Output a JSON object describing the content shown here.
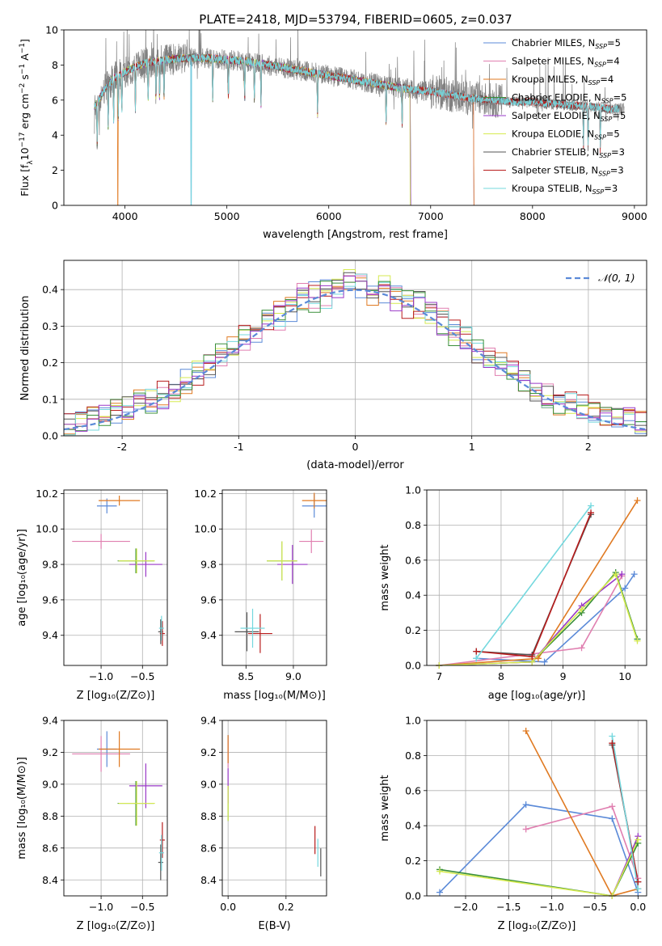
{
  "figure": {
    "title": "PLATE=2418, MJD=53794, FIBERID=0605, z=0.037"
  },
  "colors": {
    "Chabrier MILES": "#5b8ad8",
    "Salpeter MILES": "#e07fb0",
    "Kroupa MILES": "#e07a22",
    "Chabrier ELODIE": "#3a8f3a",
    "Salpeter ELODIE": "#9a38c8",
    "Kroupa ELODIE": "#d6ea50",
    "Chabrier STELIB": "#555555",
    "Salpeter STELIB": "#b81c1c",
    "Kroupa STELIB": "#74d8de",
    "normal_curve": "#5b8ad8",
    "data_spectrum": "#808080"
  },
  "chart_data": [
    {
      "id": "spectrum",
      "type": "line",
      "title": "PLATE=2418, MJD=53794, FIBERID=0605, z=0.037",
      "xlabel": "wavelength [Angstrom, rest frame]",
      "ylabel": "Flux [f_λ10^−17 erg cm^−2 s^−1 A^−1]",
      "xlim": [
        3400,
        9120
      ],
      "ylim": [
        0,
        10
      ],
      "xticks": [
        4000,
        5000,
        6000,
        7000,
        8000,
        9000
      ],
      "yticks": [
        0,
        2,
        4,
        6,
        8,
        10
      ],
      "legend_position": "upper-right",
      "legend": [
        {
          "label": "Chabrier MILES, N",
          "sub": "SSP",
          "tail": "=5"
        },
        {
          "label": "Salpeter MILES, N",
          "sub": "SSP",
          "tail": "=4"
        },
        {
          "label": "Kroupa MILES, N",
          "sub": "SSP",
          "tail": "=4"
        },
        {
          "label": "Chabrier ELODIE, N",
          "sub": "SSP",
          "tail": "=5"
        },
        {
          "label": "Salpeter ELODIE, N",
          "sub": "SSP",
          "tail": "=5"
        },
        {
          "label": "Kroupa ELODIE, N",
          "sub": "SSP",
          "tail": "=5"
        },
        {
          "label": "Chabrier STELIB, N",
          "sub": "SSP",
          "tail": "=3"
        },
        {
          "label": "Salpeter STELIB, N",
          "sub": "SSP",
          "tail": "=3"
        },
        {
          "label": "Kroupa STELIB, N",
          "sub": "SSP",
          "tail": "=3"
        }
      ],
      "continuum": {
        "x": [
          3700,
          3800,
          3900,
          4000,
          4100,
          4200,
          4400,
          4600,
          4800,
          5000,
          5200,
          5400,
          5600,
          5800,
          6000,
          6200,
          6400,
          6600,
          6800,
          7000,
          7200,
          7400,
          7600,
          7800,
          8000,
          8200,
          8400,
          8600,
          8800
        ],
        "y": [
          5.6,
          6.6,
          7.3,
          7.6,
          7.9,
          8.1,
          8.3,
          8.4,
          8.4,
          8.3,
          8.2,
          8.0,
          7.8,
          7.6,
          7.4,
          7.2,
          7.0,
          6.8,
          6.6,
          6.5,
          6.3,
          6.1,
          6.0,
          5.9,
          5.9,
          5.8,
          5.7,
          5.6,
          5.5
        ]
      }
    },
    {
      "id": "residuals",
      "type": "line",
      "xlabel": "(data-model)/error",
      "ylabel": "Normed distribution",
      "xlim": [
        -2.5,
        2.5
      ],
      "ylim": [
        0,
        0.48
      ],
      "xticks": [
        -2,
        -1,
        0,
        1,
        2
      ],
      "yticks": [
        0.0,
        0.1,
        0.2,
        0.3,
        0.4
      ],
      "legend_position": "upper-right",
      "legend_label": "𝒩(0, 1)",
      "normal": {
        "mean": 0,
        "sigma": 1
      }
    },
    {
      "id": "age_vs_Z",
      "type": "scatter",
      "xlabel": "Z [log₁₀(Z/Z⊙)]",
      "ylabel": "age  [log₁₀(age/yr)]",
      "xlim": [
        -1.45,
        -0.2
      ],
      "ylim": [
        9.23,
        10.22
      ],
      "xticks": [
        -1.0,
        -0.5
      ],
      "yticks": [
        9.4,
        9.6,
        9.8,
        10.0,
        10.2
      ]
    },
    {
      "id": "age_vs_mass",
      "type": "scatter",
      "xlabel": "mass [log₁₀(M/M⊙)]",
      "xlim": [
        8.25,
        9.35
      ],
      "ylim": [
        9.23,
        10.22
      ],
      "xticks": [
        8.5,
        9.0
      ],
      "yticks": [
        9.4,
        9.6,
        9.8,
        10.0,
        10.2
      ]
    },
    {
      "id": "weight_vs_age",
      "type": "line",
      "xlabel": "age  [log₁₀(age/yr)]",
      "ylabel": "mass weight",
      "xlim": [
        6.8,
        10.35
      ],
      "ylim": [
        0,
        1
      ],
      "xticks": [
        7,
        8,
        9,
        10
      ],
      "yticks": [
        0.0,
        0.2,
        0.4,
        0.6,
        0.8,
        1.0
      ]
    },
    {
      "id": "mass_vs_Z",
      "type": "scatter",
      "xlabel": "Z [log₁₀(Z/Z⊙)]",
      "ylabel": "mass [log₁₀(M/M⊙)]",
      "xlim": [
        -1.45,
        -0.2
      ],
      "ylim": [
        8.3,
        9.4
      ],
      "xticks": [
        -1.0,
        -0.5
      ],
      "yticks": [
        8.4,
        8.6,
        8.8,
        9.0,
        9.2,
        9.4
      ]
    },
    {
      "id": "mass_vs_ebv",
      "type": "scatter",
      "xlabel": "E(B-V)",
      "xlim": [
        -0.02,
        0.34
      ],
      "ylim": [
        8.3,
        9.4
      ],
      "xticks": [
        0.0,
        0.2
      ],
      "yticks": [
        8.4,
        8.6,
        8.8,
        9.0,
        9.2,
        9.4
      ]
    },
    {
      "id": "weight_vs_Z",
      "type": "line",
      "xlabel": "Z [log₁₀(Z/Z⊙)]",
      "ylabel": "mass weight",
      "xlim": [
        -2.45,
        0.1
      ],
      "ylim": [
        0,
        1
      ],
      "xticks": [
        -2.0,
        -1.5,
        -1.0,
        -0.5,
        0.0
      ],
      "yticks": [
        0.0,
        0.2,
        0.4,
        0.6,
        0.8,
        1.0
      ]
    }
  ],
  "models": [
    {
      "name": "Chabrier MILES",
      "Z": -0.93,
      "Zerr": 0.12,
      "age": 10.13,
      "ageErr": 0.03,
      "mass": 9.22,
      "massErr": 0.08,
      "ebv": 0.0,
      "ebvErr": 0.0,
      "ages": [
        7.6,
        8.7,
        10.0,
        10.15
      ],
      "ageW": [
        0.04,
        0.02,
        0.44,
        0.52
      ],
      "Zs": [
        -2.3,
        -1.3,
        -0.3,
        0.0
      ],
      "ZW": [
        0.02,
        0.52,
        0.44,
        0.02
      ]
    },
    {
      "name": "Salpeter MILES",
      "Z": -1.0,
      "Zerr": 0.35,
      "age": 9.93,
      "ageErr": 0.03,
      "mass": 9.19,
      "massErr": 0.08,
      "ebv": 0.0,
      "ebvErr": 0.0,
      "ages": [
        7.0,
        9.3,
        9.95
      ],
      "ageW": [
        0.0,
        0.1,
        0.51
      ],
      "Zs": [
        -1.3,
        -0.3,
        0.0
      ],
      "ZW": [
        0.38,
        0.51,
        0.1
      ]
    },
    {
      "name": "Kroupa MILES",
      "Z": -0.78,
      "Zerr": 0.25,
      "age": 10.16,
      "ageErr": 0.02,
      "mass": 9.22,
      "massErr": 0.08,
      "ebv": 0.0,
      "ebvErr": 0.0,
      "ages": [
        7.0,
        8.6,
        10.2
      ],
      "ageW": [
        0.0,
        0.04,
        0.94
      ],
      "Zs": [
        -1.3,
        -0.3,
        0.0
      ],
      "ZW": [
        0.94,
        0.0,
        0.04
      ]
    },
    {
      "name": "Chabrier ELODIE",
      "Z": -0.58,
      "Zerr": 0.22,
      "age": 9.82,
      "ageErr": 0.05,
      "mass": 8.88,
      "massErr": 0.1,
      "ebv": 0.0,
      "ebvErr": 0.0,
      "ages": [
        7.0,
        8.5,
        9.3,
        9.85,
        10.2
      ],
      "ageW": [
        0.0,
        0.02,
        0.3,
        0.53,
        0.15
      ],
      "Zs": [
        -2.3,
        -0.3,
        0.0
      ],
      "ZW": [
        0.15,
        0.0,
        0.3
      ]
    },
    {
      "name": "Salpeter ELODIE",
      "Z": -0.46,
      "Zerr": 0.2,
      "age": 9.8,
      "ageErr": 0.05,
      "mass": 8.99,
      "massErr": 0.1,
      "ebv": 0.0,
      "ebvErr": 0.0,
      "ages": [
        7.0,
        8.5,
        9.3,
        9.95
      ],
      "ageW": [
        0.0,
        0.02,
        0.34,
        0.52
      ],
      "Zs": [
        -0.3,
        0.0
      ],
      "ZW": [
        0.0,
        0.34
      ]
    },
    {
      "name": "Kroupa ELODIE",
      "Z": -0.57,
      "Zerr": 0.22,
      "age": 9.82,
      "ageErr": 0.05,
      "mass": 8.88,
      "massErr": 0.1,
      "ebv": 0.0,
      "ebvErr": 0.0,
      "ages": [
        7.0,
        8.5,
        9.3,
        9.85,
        10.2
      ],
      "ageW": [
        0.0,
        0.02,
        0.32,
        0.52,
        0.14
      ],
      "Zs": [
        -2.3,
        -0.3,
        0.0
      ],
      "ZW": [
        0.14,
        0.0,
        0.32
      ]
    },
    {
      "name": "Chabrier STELIB",
      "Z": -0.28,
      "Zerr": 0.03,
      "age": 9.42,
      "ageErr": 0.05,
      "mass": 8.51,
      "massErr": 0.08,
      "ebv": 0.32,
      "ebvErr": 0.0,
      "ages": [
        7.6,
        8.5,
        9.45
      ],
      "ageW": [
        0.08,
        0.06,
        0.86
      ],
      "Zs": [
        -0.3,
        0.0
      ],
      "ZW": [
        0.86,
        0.08
      ]
    },
    {
      "name": "Salpeter STELIB",
      "Z": -0.26,
      "Zerr": 0.03,
      "age": 9.41,
      "ageErr": 0.05,
      "mass": 8.65,
      "massErr": 0.08,
      "ebv": 0.3,
      "ebvErr": 0.0,
      "ages": [
        7.6,
        8.5,
        9.45
      ],
      "ageW": [
        0.08,
        0.05,
        0.87
      ],
      "Zs": [
        -0.3,
        0.0
      ],
      "ZW": [
        0.87,
        0.08
      ]
    },
    {
      "name": "Kroupa STELIB",
      "Z": -0.27,
      "Zerr": 0.03,
      "age": 9.44,
      "ageErr": 0.05,
      "mass": 8.57,
      "massErr": 0.08,
      "ebv": 0.31,
      "ebvErr": 0.0,
      "ages": [
        7.6,
        9.45
      ],
      "ageW": [
        0.04,
        0.91
      ],
      "Zs": [
        -0.3,
        0.0
      ],
      "ZW": [
        0.91,
        0.04
      ]
    }
  ]
}
